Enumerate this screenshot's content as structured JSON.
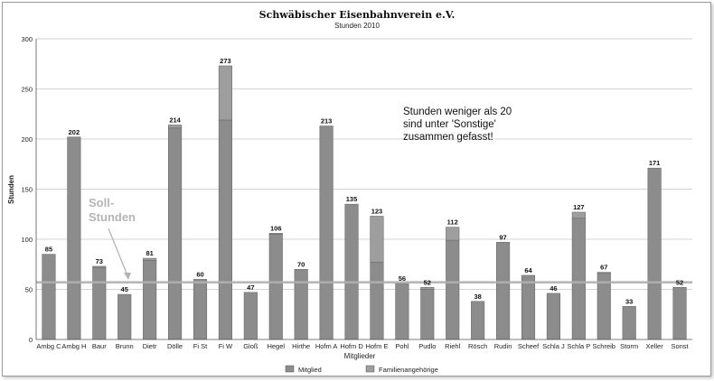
{
  "chart_data": {
    "type": "bar",
    "title": "Schwäbischer Eisenbahnverein e.V.",
    "subtitle": "Stunden 2010",
    "xlabel": "Mitglieder",
    "ylabel": "Stunden",
    "ylim": [
      0,
      300
    ],
    "yticks": [
      0,
      50,
      100,
      150,
      200,
      250,
      300
    ],
    "grid": true,
    "stacked": true,
    "legend_position": "bottom",
    "categories": [
      "Ambg C",
      "Ambg H",
      "Baur",
      "Brunn",
      "Dietr",
      "Dölle",
      "Fi St",
      "Fi W",
      "Gloß",
      "Hegel",
      "Hirthe",
      "Hofm A",
      "Hofm D",
      "Hofm E",
      "Pohl",
      "Pudlo",
      "Riehl",
      "Rösch",
      "Rudin",
      "Scheef",
      "Schla J",
      "Schla P",
      "Schreib",
      "Storm",
      "Xeller",
      "Sonst"
    ],
    "totals": [
      85,
      202,
      73,
      45,
      81,
      214,
      60,
      273,
      47,
      106,
      70,
      213,
      135,
      123,
      56,
      52,
      112,
      38,
      97,
      64,
      46,
      127,
      67,
      33,
      171,
      52
    ],
    "series": [
      {
        "name": "Mitglied",
        "color": "#8c8c8c",
        "values": [
          85,
          202,
          72,
          45,
          79,
          211,
          60,
          219,
          47,
          105,
          70,
          213,
          135,
          77,
          56,
          50,
          99,
          38,
          97,
          64,
          46,
          121,
          66,
          33,
          171,
          52
        ]
      },
      {
        "name": "Familienangehörige",
        "color": "#9e9e9e",
        "values": [
          0,
          0,
          1,
          0,
          2,
          3,
          0,
          54,
          0,
          1,
          0,
          0,
          0,
          46,
          0,
          2,
          13,
          0,
          0,
          0,
          0,
          6,
          1,
          0,
          0,
          0
        ]
      }
    ],
    "reference_line": {
      "value": 57,
      "label_line1": "Soll-",
      "label_line2": "Stunden",
      "color": "#b0b0b0"
    },
    "annotation": [
      "Stunden weniger als 20",
      "sind unter 'Sonstige'",
      "zusammen gefasst!"
    ]
  }
}
